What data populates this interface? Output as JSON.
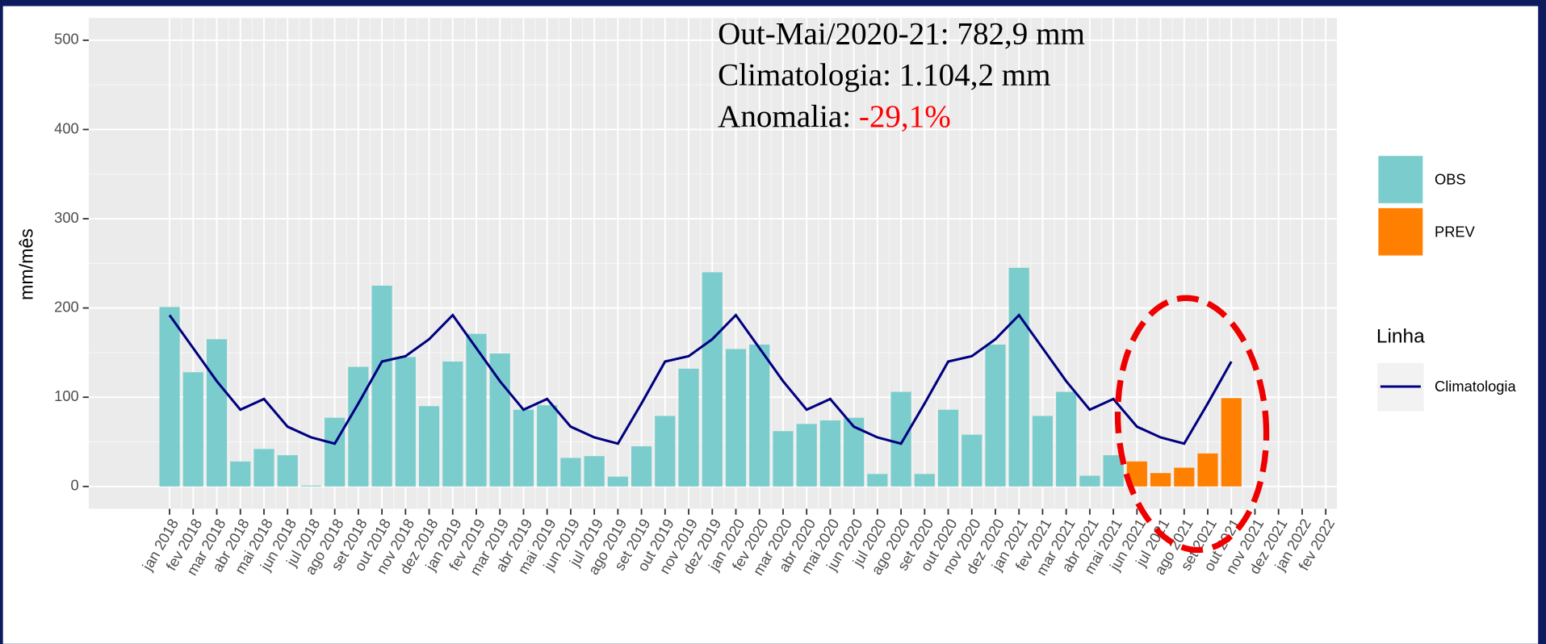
{
  "chart_data": {
    "type": "bar",
    "y_label": "mm/mês",
    "annotations": [
      "Out-Mai/2020-21: 782,9 mm",
      "Climatologia: 1.104,2 mm"
    ],
    "anomaly": {
      "label": "Anomalia:",
      "value": "-29,1%",
      "color": "#ff0000"
    },
    "categories": [
      "jan 2018",
      "fev 2018",
      "mar 2018",
      "abr 2018",
      "mai 2018",
      "jun 2018",
      "jul 2018",
      "ago 2018",
      "set 2018",
      "out 2018",
      "nov 2018",
      "dez 2018",
      "jan 2019",
      "fev 2019",
      "mar 2019",
      "abr 2019",
      "mai 2019",
      "jun 2019",
      "jul 2019",
      "ago 2019",
      "set 2019",
      "out 2019",
      "nov 2019",
      "dez 2019",
      "jan 2020",
      "fev 2020",
      "mar 2020",
      "abr 2020",
      "mai 2020",
      "jun 2020",
      "jul 2020",
      "ago 2020",
      "set 2020",
      "out 2020",
      "nov 2020",
      "dez 2020",
      "jan 2021",
      "fev 2021",
      "mar 2021",
      "abr 2021",
      "mai 2021",
      "jun 2021",
      "jul 2021",
      "ago 2021",
      "set 2021",
      "out 2021",
      "nov 2021",
      "dez 2021",
      "jan 2022",
      "fev 2022"
    ],
    "series": [
      {
        "name": "OBS",
        "type": "bar",
        "color": "#7acdcc",
        "values": [
          201,
          128,
          165,
          28,
          42,
          35,
          1,
          77,
          134,
          225,
          145,
          90,
          140,
          171,
          149,
          86,
          91,
          32,
          34,
          11,
          45,
          79,
          132,
          240,
          154,
          159,
          62,
          70,
          74,
          77,
          14,
          106,
          14,
          86,
          58,
          159,
          245,
          79,
          106,
          12,
          35,
          null,
          null,
          null,
          null,
          null,
          null,
          null,
          null,
          null
        ]
      },
      {
        "name": "PREV",
        "type": "bar",
        "color": "#ff8000",
        "values": [
          null,
          null,
          null,
          null,
          null,
          null,
          null,
          null,
          null,
          null,
          null,
          null,
          null,
          null,
          null,
          null,
          null,
          null,
          null,
          null,
          null,
          null,
          null,
          null,
          null,
          null,
          null,
          null,
          null,
          null,
          null,
          null,
          null,
          null,
          null,
          null,
          null,
          null,
          null,
          null,
          null,
          28,
          15,
          21,
          37,
          99,
          null,
          null,
          null,
          null
        ]
      },
      {
        "name": "Climatologia",
        "type": "line",
        "color": "#000080",
        "values": [
          192,
          155,
          118,
          86,
          98,
          67,
          55,
          48,
          93,
          140,
          146,
          165,
          192,
          155,
          118,
          86,
          98,
          67,
          55,
          48,
          93,
          140,
          146,
          165,
          192,
          155,
          118,
          86,
          98,
          67,
          55,
          48,
          93,
          140,
          146,
          165,
          192,
          155,
          118,
          86,
          98,
          67,
          55,
          48,
          93,
          140,
          null,
          null,
          null,
          null
        ]
      }
    ],
    "line_legend_title": "Linha",
    "ylim": [
      -25,
      525
    ],
    "yticks": [
      0,
      100,
      200,
      300,
      400,
      500
    ],
    "grid": true
  }
}
